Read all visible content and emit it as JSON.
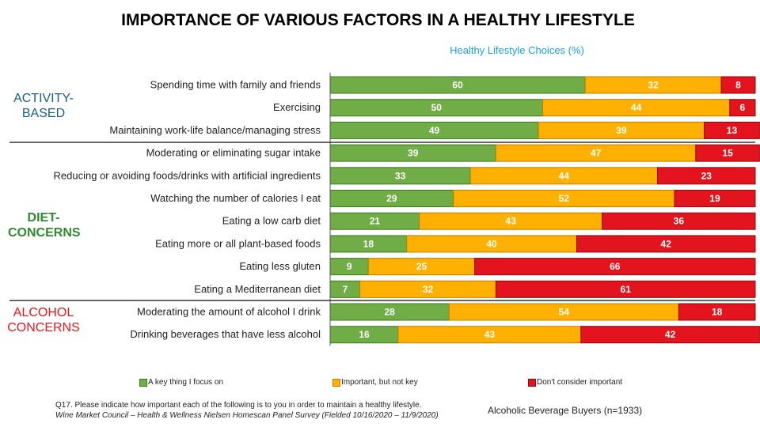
{
  "title": "IMPORTANCE OF VARIOUS FACTORS IN A HEALTHY LIFESTYLE",
  "subtitle": "Healthy Lifestyle Choices (%)",
  "groups": {
    "activity": [
      "ACTIVITY-",
      "BASED"
    ],
    "diet": [
      "DIET-",
      "CONCERNS"
    ],
    "alcohol": [
      "ALCOHOL",
      "CONCERNS"
    ]
  },
  "footnote": {
    "question": "Q17. Please indicate how important each of the following is to you in order to maintain a healthy lifestyle.",
    "source": "Wine Market Council – Health & Wellness Nielsen Homescan Panel Survey (Fielded 10/16/2020 – 11/9/2020)"
  },
  "sample": "Alcoholic Beverage Buyers (n=1933)",
  "colors": {
    "key": "#70ad47",
    "important": "#ffb000",
    "not": "#e3141e",
    "grid": "#555555"
  },
  "chart_data": {
    "type": "bar",
    "orientation": "horizontal",
    "stacked": true,
    "xlim": [
      0,
      100
    ],
    "categories": [
      "Spending time with family and friends",
      "Exercising",
      "Maintaining work-life balance/managing stress",
      "Moderating or eliminating sugar intake",
      "Reducing or avoiding foods/drinks with artificial ingredients",
      "Watching the number of calories I eat",
      "Eating a low carb diet",
      "Eating more or all plant-based foods",
      "Eating less gluten",
      "Eating a Mediterranean diet",
      "Moderating the amount of alcohol I drink",
      "Drinking beverages that have less alcohol"
    ],
    "series": [
      {
        "name": "A key thing I focus on",
        "color": "#70ad47",
        "values": [
          60,
          50,
          49,
          39,
          33,
          29,
          21,
          18,
          9,
          7,
          28,
          16
        ]
      },
      {
        "name": "Important, but not key",
        "color": "#ffb000",
        "values": [
          32,
          44,
          39,
          47,
          44,
          52,
          43,
          40,
          25,
          32,
          54,
          43
        ]
      },
      {
        "name": "Don't consider important",
        "color": "#e3141e",
        "values": [
          8,
          6,
          13,
          15,
          23,
          19,
          36,
          42,
          66,
          61,
          18,
          42
        ]
      }
    ],
    "legend_position": "bottom",
    "grid": false
  }
}
